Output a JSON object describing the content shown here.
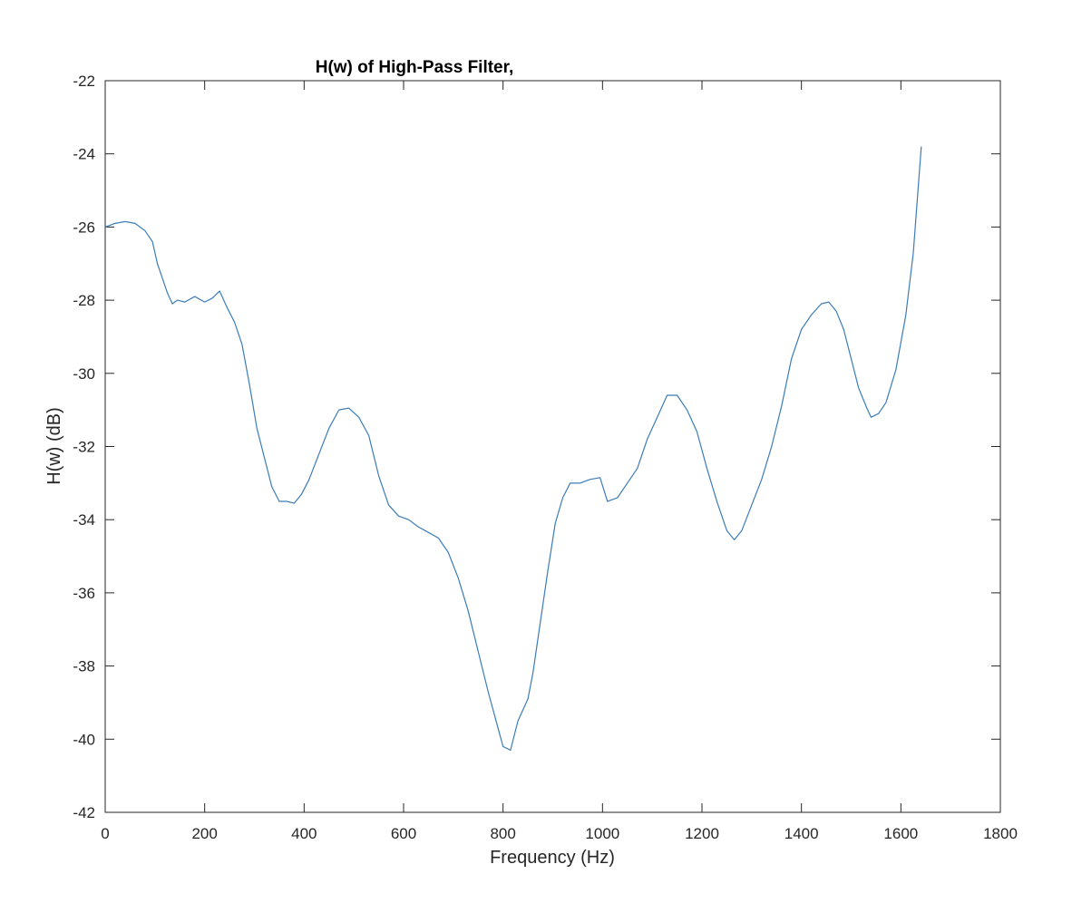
{
  "chart_data": {
    "type": "line",
    "title": "H(w) of High-Pass Filter,",
    "xlabel": "Frequency (Hz)",
    "ylabel": "H(w) (dB)",
    "xlim": [
      0,
      1800
    ],
    "ylim": [
      -42,
      -22
    ],
    "xticks": [
      "0",
      "200",
      "400",
      "600",
      "800",
      "1000",
      "1200",
      "1400",
      "1600",
      "1800"
    ],
    "yticks": [
      "-22",
      "-24",
      "-26",
      "-28",
      "-30",
      "-32",
      "-34",
      "-36",
      "-38",
      "-40",
      "-42"
    ],
    "grid": false,
    "line_color": "#3b7cb8",
    "series": [
      {
        "x": [
          0,
          20,
          40,
          60,
          80,
          95,
          105,
          115,
          125,
          135,
          145,
          160,
          180,
          200,
          215,
          230,
          245,
          260,
          275,
          290,
          305,
          320,
          335,
          350,
          365,
          380,
          395,
          410,
          430,
          450,
          470,
          490,
          510,
          530,
          550,
          570,
          590,
          610,
          630,
          650,
          670,
          690,
          710,
          730,
          750,
          770,
          790,
          800,
          815,
          830,
          850,
          860,
          875,
          890,
          905,
          920,
          935,
          955,
          975,
          995,
          1010,
          1030,
          1050,
          1070,
          1090,
          1110,
          1130,
          1150,
          1170,
          1190,
          1210,
          1230,
          1250,
          1265,
          1280,
          1300,
          1320,
          1340,
          1360,
          1380,
          1400,
          1420,
          1440,
          1455,
          1470,
          1485,
          1500,
          1515,
          1530,
          1540,
          1555,
          1570,
          1590,
          1610,
          1625,
          1641
        ],
        "y": [
          -26.0,
          -25.9,
          -25.85,
          -25.9,
          -26.1,
          -26.4,
          -27.0,
          -27.4,
          -27.8,
          -28.1,
          -28.0,
          -28.05,
          -27.9,
          -28.05,
          -27.95,
          -27.75,
          -28.2,
          -28.6,
          -29.2,
          -30.3,
          -31.5,
          -32.3,
          -33.1,
          -33.5,
          -33.5,
          -33.55,
          -33.3,
          -32.9,
          -32.2,
          -31.5,
          -31.0,
          -30.95,
          -31.2,
          -31.7,
          -32.8,
          -33.6,
          -33.9,
          -34.0,
          -34.2,
          -34.35,
          -34.5,
          -34.9,
          -35.6,
          -36.5,
          -37.6,
          -38.7,
          -39.7,
          -40.2,
          -40.3,
          -39.5,
          -38.9,
          -38.2,
          -36.8,
          -35.4,
          -34.1,
          -33.4,
          -33.0,
          -33.0,
          -32.9,
          -32.85,
          -33.5,
          -33.4,
          -33.0,
          -32.6,
          -31.8,
          -31.2,
          -30.6,
          -30.6,
          -31.0,
          -31.6,
          -32.6,
          -33.5,
          -34.3,
          -34.55,
          -34.3,
          -33.6,
          -32.9,
          -32.0,
          -30.9,
          -29.6,
          -28.8,
          -28.4,
          -28.1,
          -28.05,
          -28.3,
          -28.8,
          -29.6,
          -30.4,
          -30.9,
          -31.2,
          -31.1,
          -30.8,
          -29.9,
          -28.4,
          -26.7,
          -23.8
        ]
      }
    ]
  }
}
